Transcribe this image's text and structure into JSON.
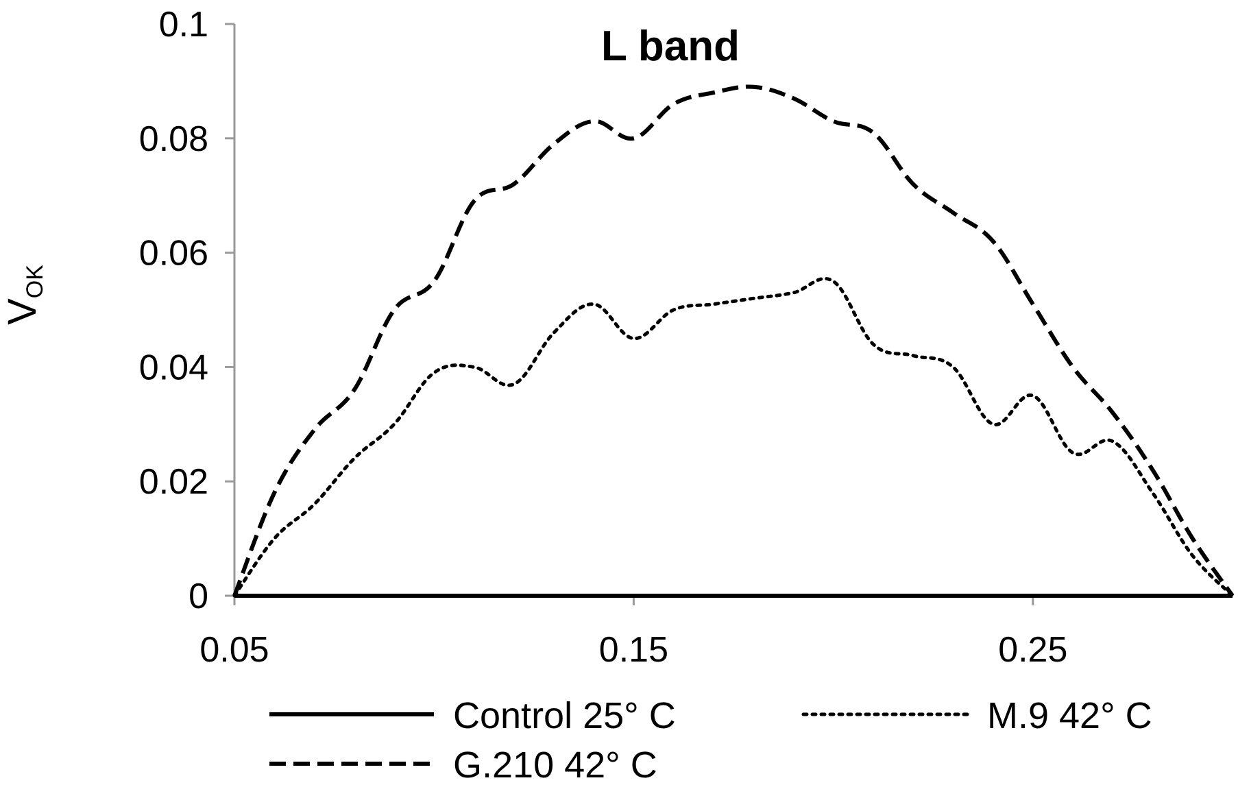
{
  "chart_data": {
    "type": "line",
    "title": "L band",
    "ylabel": "V",
    "ylabel_subscript": "OK",
    "xlabel": "",
    "xlim": [
      0.05,
      0.3
    ],
    "ylim": [
      0,
      0.1
    ],
    "x_ticks": [
      0.05,
      0.15,
      0.25
    ],
    "x_tick_labels": [
      "0.05",
      "0.15",
      "0.25"
    ],
    "y_ticks": [
      0,
      0.02,
      0.04,
      0.06,
      0.08,
      0.1
    ],
    "y_tick_labels": [
      "0",
      "0.02",
      "0.04",
      "0.06",
      "0.08",
      "0.1"
    ],
    "grid": false,
    "legend_position": "bottom",
    "series": [
      {
        "name": "Control 25° C",
        "style": "solid",
        "color": "#000000",
        "x": [
          0.05,
          0.3
        ],
        "y": [
          0,
          0
        ]
      },
      {
        "name": "M.9 42° C",
        "style": "dotted",
        "color": "#000000",
        "x": [
          0.05,
          0.06,
          0.07,
          0.08,
          0.09,
          0.1,
          0.11,
          0.12,
          0.13,
          0.14,
          0.15,
          0.16,
          0.17,
          0.18,
          0.19,
          0.2,
          0.21,
          0.22,
          0.23,
          0.24,
          0.25,
          0.26,
          0.27,
          0.28,
          0.29,
          0.3
        ],
        "y": [
          0,
          0.01,
          0.016,
          0.024,
          0.03,
          0.039,
          0.04,
          0.037,
          0.046,
          0.051,
          0.045,
          0.05,
          0.051,
          0.052,
          0.053,
          0.055,
          0.044,
          0.042,
          0.04,
          0.03,
          0.035,
          0.025,
          0.027,
          0.018,
          0.007,
          0
        ]
      },
      {
        "name": "G.210 42° C",
        "style": "dashed",
        "color": "#000000",
        "x": [
          0.05,
          0.06,
          0.07,
          0.08,
          0.09,
          0.1,
          0.11,
          0.12,
          0.13,
          0.14,
          0.15,
          0.16,
          0.17,
          0.18,
          0.19,
          0.2,
          0.21,
          0.22,
          0.23,
          0.24,
          0.25,
          0.26,
          0.27,
          0.28,
          0.29,
          0.3
        ],
        "y": [
          0,
          0.018,
          0.029,
          0.036,
          0.05,
          0.055,
          0.069,
          0.072,
          0.079,
          0.083,
          0.08,
          0.086,
          0.088,
          0.089,
          0.087,
          0.083,
          0.081,
          0.072,
          0.067,
          0.062,
          0.051,
          0.04,
          0.032,
          0.022,
          0.01,
          0
        ]
      }
    ]
  }
}
